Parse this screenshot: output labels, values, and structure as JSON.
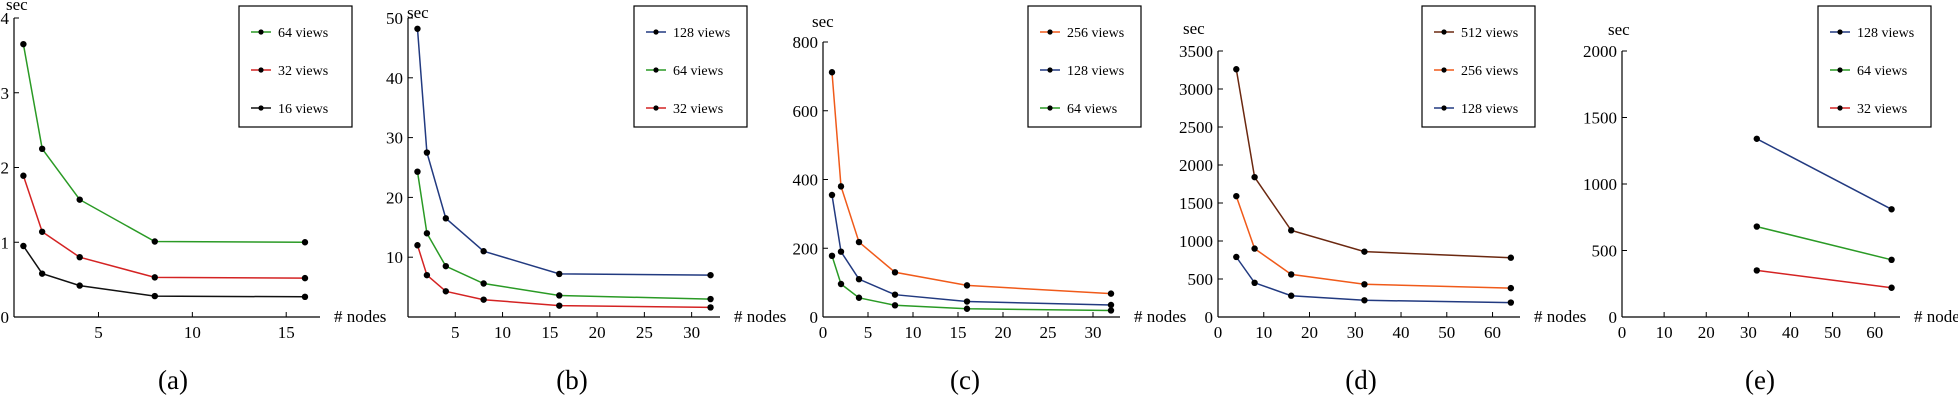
{
  "colors": {
    "green": "#2a9a25",
    "red": "#d42323",
    "black": "#111111",
    "navy": "#223a80",
    "orange": "#f05a1a",
    "brown": "#6b2810"
  },
  "chart_data": [
    {
      "type": "line",
      "panel_label": "(a)",
      "ylabel": "sec",
      "xlabel": "# nodes",
      "xlim": [
        0.5,
        16.8
      ],
      "ylim": [
        0,
        4
      ],
      "xticks": [
        5,
        10,
        15
      ],
      "xtick_labels": [
        "5",
        "10",
        "15"
      ],
      "yticks": [
        0,
        1,
        2,
        3,
        4
      ],
      "ytick_labels": [
        "0",
        "1",
        "2",
        "3",
        "4"
      ],
      "grid": false,
      "legend_position": "top-right",
      "series": [
        {
          "name": "64 views",
          "color": "#2a9a25",
          "x": [
            1,
            2,
            4,
            8,
            16
          ],
          "y": [
            3.65,
            2.25,
            1.57,
            1.01,
            1.0
          ]
        },
        {
          "name": "32 views",
          "color": "#d42323",
          "x": [
            1,
            2,
            4,
            8,
            16
          ],
          "y": [
            1.89,
            1.14,
            0.8,
            0.53,
            0.52
          ]
        },
        {
          "name": "16 views",
          "color": "#111111",
          "x": [
            1,
            2,
            4,
            8,
            16
          ],
          "y": [
            0.95,
            0.58,
            0.42,
            0.28,
            0.27
          ]
        }
      ]
    },
    {
      "type": "line",
      "panel_label": "(b)",
      "ylabel": "sec",
      "xlabel": "# nodes",
      "xlim": [
        0,
        33
      ],
      "ylim": [
        0,
        50
      ],
      "xticks": [
        5,
        10,
        15,
        20,
        25,
        30
      ],
      "xtick_labels": [
        "5",
        "10",
        "15",
        "20",
        "25",
        "30"
      ],
      "yticks": [
        10,
        20,
        30,
        40,
        50
      ],
      "ytick_labels": [
        "10",
        "20",
        "30",
        "40",
        "50"
      ],
      "grid": false,
      "legend_position": "top-right",
      "series": [
        {
          "name": "128 views",
          "color": "#223a80",
          "x": [
            1,
            2,
            4,
            8,
            16,
            32
          ],
          "y": [
            48.2,
            27.5,
            16.5,
            11.0,
            7.2,
            7.0
          ]
        },
        {
          "name": "64 views",
          "color": "#2a9a25",
          "x": [
            1,
            2,
            4,
            8,
            16,
            32
          ],
          "y": [
            24.3,
            14.0,
            8.5,
            5.6,
            3.6,
            3.0
          ]
        },
        {
          "name": "32 views",
          "color": "#d42323",
          "x": [
            1,
            2,
            4,
            8,
            16,
            32
          ],
          "y": [
            12.0,
            7.0,
            4.3,
            2.9,
            1.9,
            1.6
          ]
        }
      ]
    },
    {
      "type": "line",
      "panel_label": "(c)",
      "ylabel": "sec",
      "xlabel": "# nodes",
      "xlim": [
        0,
        33
      ],
      "ylim": [
        0,
        800
      ],
      "xticks": [
        0,
        5,
        10,
        15,
        20,
        25,
        30
      ],
      "xtick_labels": [
        "0",
        "5",
        "10",
        "15",
        "20",
        "25",
        "30"
      ],
      "yticks": [
        0,
        200,
        400,
        600,
        800
      ],
      "ytick_labels": [
        "0",
        "200",
        "400",
        "600",
        "800"
      ],
      "grid": false,
      "legend_position": "top-right",
      "series": [
        {
          "name": "256 views",
          "color": "#f05a1a",
          "x": [
            1,
            2,
            4,
            8,
            16,
            32
          ],
          "y": [
            712,
            380,
            218,
            130,
            92,
            68
          ]
        },
        {
          "name": "128 views",
          "color": "#223a80",
          "x": [
            1,
            2,
            4,
            8,
            16,
            32
          ],
          "y": [
            355,
            190,
            110,
            65,
            45,
            35
          ]
        },
        {
          "name": "64 views",
          "color": "#2a9a25",
          "x": [
            1,
            2,
            4,
            8,
            16,
            32
          ],
          "y": [
            178,
            96,
            56,
            34,
            24,
            19
          ]
        }
      ]
    },
    {
      "type": "line",
      "panel_label": "(d)",
      "ylabel": "sec",
      "xlabel": "# nodes",
      "xlim": [
        0,
        66
      ],
      "ylim": [
        0,
        3500
      ],
      "xticks": [
        0,
        10,
        20,
        30,
        40,
        50,
        60
      ],
      "xtick_labels": [
        "0",
        "10",
        "20",
        "30",
        "40",
        "50",
        "60"
      ],
      "yticks": [
        0,
        500,
        1000,
        1500,
        2000,
        2500,
        3000,
        3500
      ],
      "ytick_labels": [
        "0",
        "500",
        "1000",
        "1500",
        "2000",
        "2500",
        "3000",
        "3500"
      ],
      "grid": false,
      "legend_position": "top-right",
      "series": [
        {
          "name": "512 views",
          "color": "#6b2810",
          "x": [
            4,
            8,
            16,
            32,
            64
          ],
          "y": [
            3260,
            1840,
            1140,
            860,
            780
          ]
        },
        {
          "name": "256 views",
          "color": "#f05a1a",
          "x": [
            4,
            8,
            16,
            32,
            64
          ],
          "y": [
            1590,
            900,
            560,
            430,
            380
          ]
        },
        {
          "name": "128 views",
          "color": "#223a80",
          "x": [
            4,
            8,
            16,
            32,
            64
          ],
          "y": [
            790,
            450,
            280,
            220,
            190
          ]
        }
      ]
    },
    {
      "type": "line",
      "panel_label": "(e)",
      "ylabel": "sec",
      "xlabel": "# nodes",
      "xlim": [
        0,
        66
      ],
      "ylim": [
        0,
        2000
      ],
      "xticks": [
        0,
        10,
        20,
        30,
        40,
        50,
        60
      ],
      "xtick_labels": [
        "0",
        "10",
        "20",
        "30",
        "40",
        "50",
        "60"
      ],
      "yticks": [
        0,
        500,
        1000,
        1500,
        2000
      ],
      "ytick_labels": [
        "0",
        "500",
        "1000",
        "1500",
        "2000"
      ],
      "grid": false,
      "legend_position": "top-right",
      "series": [
        {
          "name": "128 views",
          "color": "#223a80",
          "x": [
            32,
            64
          ],
          "y": [
            1340,
            810
          ]
        },
        {
          "name": "64 views",
          "color": "#2a9a25",
          "x": [
            32,
            64
          ],
          "y": [
            680,
            430
          ]
        },
        {
          "name": "32 views",
          "color": "#d42323",
          "x": [
            32,
            64
          ],
          "y": [
            350,
            220
          ]
        }
      ]
    }
  ]
}
